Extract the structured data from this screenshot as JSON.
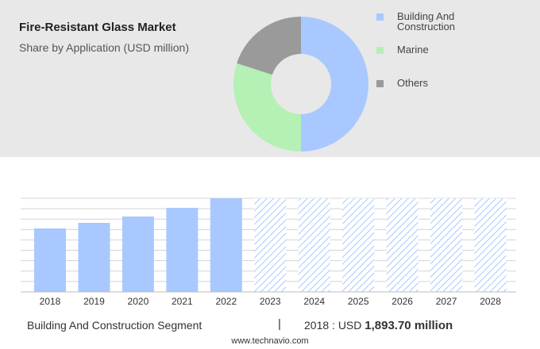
{
  "header": {
    "title": "Fire-Resistant Glass Market",
    "subtitle": "Share by Application (USD million)"
  },
  "chart_data": [
    {
      "type": "pie",
      "variant": "donut",
      "categories": [
        "Building And Construction",
        "Marine",
        "Others"
      ],
      "values": [
        50,
        30,
        20
      ],
      "colors": [
        "#a8c8ff",
        "#b5f0b5",
        "#9a9a9a"
      ],
      "legend_position": "right"
    },
    {
      "type": "bar",
      "categories": [
        "2018",
        "2019",
        "2020",
        "2021",
        "2022",
        "2023",
        "2024",
        "2025",
        "2026",
        "2027",
        "2028"
      ],
      "values": [
        80,
        87,
        95,
        106,
        118,
        118,
        118,
        118,
        118,
        118,
        118
      ],
      "forecast_from": "2023",
      "colors": {
        "actual": "#a8c8ff",
        "forecast_hatch": "#a8c8ff"
      },
      "grid": true,
      "ylim": [
        0,
        125
      ]
    }
  ],
  "footer": {
    "segment_label": "Building And Construction Segment",
    "separator": "|",
    "value_prefix": "2018 : USD",
    "value_bold": "1,893.70 million",
    "source": "www.technavio.com"
  }
}
